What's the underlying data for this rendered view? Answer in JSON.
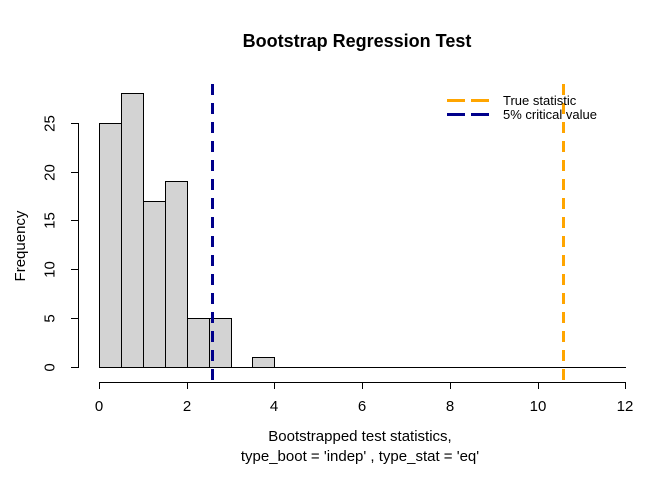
{
  "chart_data": {
    "type": "bar",
    "subtype": "histogram",
    "title": "Bootstrap Regression Test",
    "ylabel": "Frequency",
    "xlabel_lines": [
      "Bootstrapped test statistics,",
      "type_boot = 'indep' , type_stat = 'eq'"
    ],
    "bins": {
      "breaks": [
        0,
        0.5,
        1.0,
        1.5,
        2.0,
        2.5,
        3.0,
        3.5,
        4.0
      ],
      "counts": [
        25,
        28,
        17,
        19,
        5,
        5,
        0,
        1
      ]
    },
    "zero_bars_extend_to": 12,
    "x_ticks": [
      0,
      2,
      4,
      6,
      8,
      10,
      12
    ],
    "y_ticks": [
      0,
      5,
      10,
      15,
      20,
      25
    ],
    "xlim": [
      0,
      12
    ],
    "ylim": [
      0,
      28
    ],
    "grid": false,
    "background": "#FFFFFF",
    "bar_fill": "#D3D3D3",
    "bar_border": "#000000",
    "axis_color": "#000000",
    "vlines": [
      {
        "label": "True statistic",
        "x": 10.59,
        "color": "#FFA500",
        "style": "dashed",
        "lwd": 2
      },
      {
        "label": "5% critical value",
        "x": 2.57,
        "color": "#00008B",
        "style": "dashed",
        "lwd": 2
      }
    ],
    "legend": {
      "position": "topright",
      "border": "none",
      "entries": [
        {
          "label": "True statistic",
          "color": "#FFA500",
          "line_style": "dashed"
        },
        {
          "label": "5% critical value",
          "color": "#00008B",
          "line_style": "dashed"
        }
      ]
    }
  }
}
